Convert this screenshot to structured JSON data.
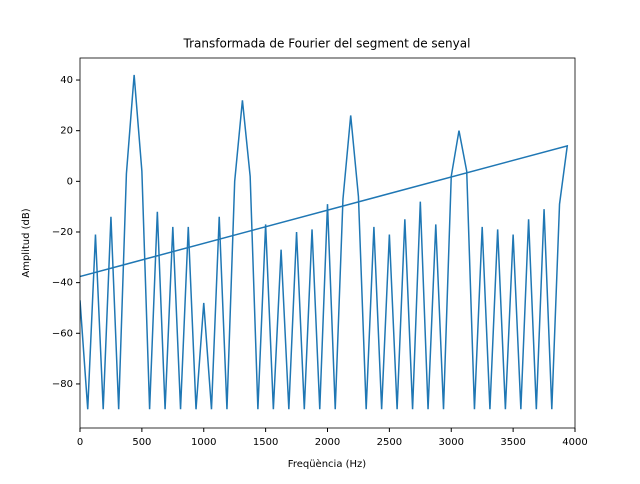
{
  "chart_data": {
    "type": "line",
    "title": "Transformada de Fourier del segment de senyal",
    "x_label": "Freqüència (Hz)",
    "y_label": "Amplitud (dB)",
    "x": [
      0,
      62.5,
      125,
      187.5,
      250,
      312.5,
      375,
      437.5,
      500,
      562.5,
      625,
      687.5,
      750,
      812.5,
      875,
      937.5,
      1000,
      1062.5,
      1125,
      1187.5,
      1250,
      1312.5,
      1375,
      1437.5,
      1500,
      1562.5,
      1625,
      1687.5,
      1750,
      1812.5,
      1875,
      1937.5,
      2000,
      2062.5,
      2125,
      2187.5,
      2250,
      2312.5,
      2375,
      2437.5,
      2500,
      2562.5,
      2625,
      2687.5,
      2750,
      2812.5,
      2875,
      2937.5,
      3000,
      3062.5,
      3125,
      3187.5,
      3250,
      3312.5,
      3375,
      3437.5,
      3500,
      3562.5,
      3625,
      3687.5,
      3750,
      3812.5,
      3875,
      3937.5,
      -4000
    ],
    "series": [
      {
        "color": "#1f77b4",
        "values": [
          -47,
          -90,
          -21,
          -90,
          -14,
          -90,
          3,
          42,
          4,
          -90,
          -12,
          -90,
          -18,
          -90,
          -18,
          -90,
          -48,
          -90,
          -14,
          -90,
          0,
          32,
          2,
          -90,
          -17,
          -90,
          -27,
          -90,
          -20,
          -90,
          -19,
          -90,
          -9,
          -90,
          -7,
          26,
          -6,
          -90,
          -18,
          -90,
          -21,
          -90,
          -15,
          -90,
          -8,
          -90,
          -17,
          -90,
          2,
          20,
          4,
          -90,
          -18,
          -90,
          -19,
          -90,
          -21,
          -90,
          -15,
          -90,
          -11,
          -90,
          -9,
          14,
          -90
        ]
      }
    ],
    "xlim": [
      0,
      4000
    ],
    "ylim": [
      -97.4,
      48.7
    ],
    "xticks": [
      0,
      500,
      1000,
      1500,
      2000,
      2500,
      3000,
      3500,
      4000
    ],
    "yticks": [
      {
        "value": -80,
        "label": "−80"
      },
      {
        "value": -60,
        "label": "−60"
      },
      {
        "value": -40,
        "label": "−40"
      },
      {
        "value": -20,
        "label": "−20"
      },
      0,
      20,
      40
    ]
  }
}
